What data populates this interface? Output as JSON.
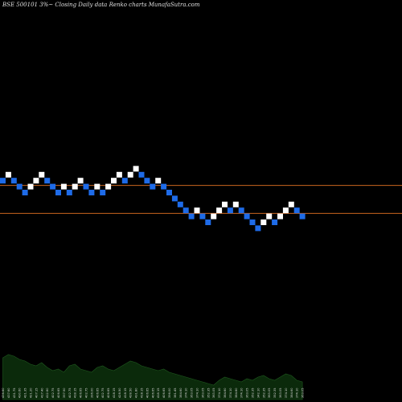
{
  "chart_data": {
    "type": "renko",
    "title": "BSE 500101 3%~  Closing Daily data  Renko  charts MunafaSutra.com",
    "colors": {
      "background": "#000000",
      "up_brick": "#ffffff",
      "down_brick": "#1e6be8",
      "reference_line": "#c8651e",
      "volume_bar": "#0b2a0b",
      "volume_edge": "#1f5a1f",
      "volume_label": "#d8d8d8"
    },
    "bricks": [
      {
        "dir": "down",
        "level": 2
      },
      {
        "dir": "up",
        "level": 3
      },
      {
        "dir": "down",
        "level": 2
      },
      {
        "dir": "down",
        "level": 1
      },
      {
        "dir": "down",
        "level": 0
      },
      {
        "dir": "up",
        "level": 1
      },
      {
        "dir": "up",
        "level": 2
      },
      {
        "dir": "up",
        "level": 3
      },
      {
        "dir": "down",
        "level": 2
      },
      {
        "dir": "down",
        "level": 1
      },
      {
        "dir": "down",
        "level": 0
      },
      {
        "dir": "up",
        "level": 1
      },
      {
        "dir": "down",
        "level": 0
      },
      {
        "dir": "up",
        "level": 1
      },
      {
        "dir": "up",
        "level": 2
      },
      {
        "dir": "down",
        "level": 1
      },
      {
        "dir": "down",
        "level": 0
      },
      {
        "dir": "up",
        "level": 1
      },
      {
        "dir": "down",
        "level": 0
      },
      {
        "dir": "up",
        "level": 1
      },
      {
        "dir": "up",
        "level": 2
      },
      {
        "dir": "up",
        "level": 3
      },
      {
        "dir": "down",
        "level": 2
      },
      {
        "dir": "up",
        "level": 3
      },
      {
        "dir": "up",
        "level": 4
      },
      {
        "dir": "down",
        "level": 3
      },
      {
        "dir": "down",
        "level": 2
      },
      {
        "dir": "down",
        "level": 1
      },
      {
        "dir": "up",
        "level": 2
      },
      {
        "dir": "down",
        "level": 1
      },
      {
        "dir": "down",
        "level": 0
      },
      {
        "dir": "down",
        "level": -1
      },
      {
        "dir": "down",
        "level": -2
      },
      {
        "dir": "down",
        "level": -3
      },
      {
        "dir": "down",
        "level": -4
      },
      {
        "dir": "up",
        "level": -3
      },
      {
        "dir": "down",
        "level": -4
      },
      {
        "dir": "down",
        "level": -5
      },
      {
        "dir": "up",
        "level": -4
      },
      {
        "dir": "up",
        "level": -3
      },
      {
        "dir": "up",
        "level": -2
      },
      {
        "dir": "down",
        "level": -3
      },
      {
        "dir": "up",
        "level": -2
      },
      {
        "dir": "down",
        "level": -3
      },
      {
        "dir": "down",
        "level": -4
      },
      {
        "dir": "down",
        "level": -5
      },
      {
        "dir": "down",
        "level": -6
      },
      {
        "dir": "up",
        "level": -5
      },
      {
        "dir": "up",
        "level": -4
      },
      {
        "dir": "down",
        "level": -5
      },
      {
        "dir": "up",
        "level": -4
      },
      {
        "dir": "up",
        "level": -3
      },
      {
        "dir": "up",
        "level": -2
      },
      {
        "dir": "down",
        "level": -3
      },
      {
        "dir": "down",
        "level": -4
      }
    ],
    "reference_levels": [
      1.2,
      -3.5
    ],
    "volume": {
      "values": [
        26,
        28,
        27,
        25,
        24,
        22,
        21,
        23,
        20,
        18,
        19,
        17,
        21,
        22,
        19,
        18,
        17,
        20,
        21,
        19,
        18,
        20,
        22,
        24,
        23,
        21,
        20,
        19,
        18,
        19,
        17,
        16,
        15,
        14,
        13,
        12,
        11,
        10,
        9,
        12,
        14,
        13,
        12,
        11,
        13,
        12,
        14,
        15,
        13,
        12,
        14,
        16,
        15,
        12,
        11
      ],
      "labels": [
        "436.60",
        "437.60",
        "431.75",
        "430.60",
        "421.35",
        "421.20",
        "407.15",
        "417.40",
        "412.60",
        "402.75",
        "406.65",
        "397.90",
        "402.75",
        "418.15",
        "406.65",
        "402.75",
        "396.00",
        "406.65",
        "402.75",
        "406.65",
        "418.15",
        "428.50",
        "418.15",
        "428.50",
        "431.80",
        "418.15",
        "406.65",
        "406.65",
        "418.15",
        "406.65",
        "396.00",
        "381.45",
        "384.60",
        "374.10",
        "363.05",
        "374.10",
        "363.05",
        "352.35",
        "363.05",
        "374.10",
        "384.60",
        "374.10",
        "384.60",
        "374.10",
        "363.05",
        "352.35",
        "342.10",
        "352.35",
        "363.05",
        "352.35",
        "363.05",
        "374.10",
        "384.60",
        "374.10",
        "363.05"
      ]
    }
  }
}
